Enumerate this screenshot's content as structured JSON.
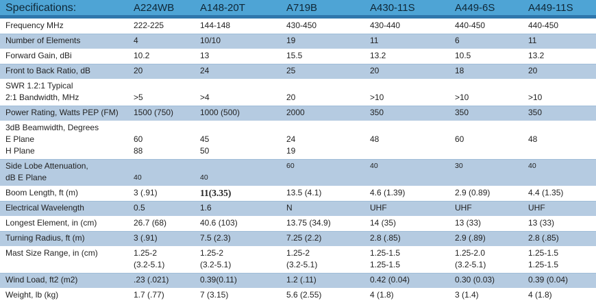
{
  "colors": {
    "header_bg": "#4EA4D5",
    "header_rule": "#2F77AC",
    "row_stripe": "#B5CBE1",
    "text": "#222222",
    "header_text": "#0E2635"
  },
  "table": {
    "columns": [
      "Specifications:",
      "A224WB",
      "A148-20T",
      "A719B",
      "A430-11S",
      "A449-6S",
      "A449-11S"
    ],
    "rows": [
      {
        "label": [
          "Frequency MHz"
        ],
        "stripe": false,
        "cells": [
          [
            "222-225"
          ],
          [
            "144-148"
          ],
          [
            "430-450"
          ],
          [
            "430-440"
          ],
          [
            "440-450"
          ],
          [
            "440-450"
          ]
        ]
      },
      {
        "label": [
          "Number of Elements"
        ],
        "stripe": true,
        "cells": [
          [
            "4"
          ],
          [
            "10/10"
          ],
          [
            "19"
          ],
          [
            "11"
          ],
          [
            "6"
          ],
          [
            "11"
          ]
        ]
      },
      {
        "label": [
          "Forward Gain, dBi"
        ],
        "stripe": false,
        "cells": [
          [
            "10.2"
          ],
          [
            "13"
          ],
          [
            "15.5"
          ],
          [
            "13.2"
          ],
          [
            "10.5"
          ],
          [
            "13.2"
          ]
        ]
      },
      {
        "label": [
          "Front to Back Ratio, dB"
        ],
        "stripe": true,
        "cells": [
          [
            "20"
          ],
          [
            "24"
          ],
          [
            "25"
          ],
          [
            "20"
          ],
          [
            "18"
          ],
          [
            "20"
          ]
        ]
      },
      {
        "label": [
          "SWR 1.2:1 Typical",
          "2:1 Bandwidth, MHz"
        ],
        "stripe": false,
        "cells": [
          [
            "",
            ">5"
          ],
          [
            "",
            ">4"
          ],
          [
            "",
            "20"
          ],
          [
            "",
            ">10"
          ],
          [
            "",
            ">10"
          ],
          [
            "",
            ">10"
          ]
        ]
      },
      {
        "label": [
          "Power Rating, Watts PEP (FM)"
        ],
        "stripe": true,
        "cells": [
          [
            "1500 (750)"
          ],
          [
            "1000 (500)"
          ],
          [
            "2000"
          ],
          [
            "350"
          ],
          [
            "350"
          ],
          [
            "350"
          ]
        ]
      },
      {
        "label": [
          "3dB Beamwidth, Degrees",
          "E Plane",
          "H Plane"
        ],
        "stripe": false,
        "cells": [
          [
            "",
            "60",
            "88"
          ],
          [
            "",
            "45",
            "50"
          ],
          [
            "",
            "24",
            "19"
          ],
          [
            "",
            "48",
            ""
          ],
          [
            "",
            "60",
            ""
          ],
          [
            "",
            "48",
            ""
          ]
        ]
      },
      {
        "label": [
          "Side Lobe Attenuation,",
          "dB E Plane"
        ],
        "stripe": true,
        "small_values": true,
        "cells": [
          [
            "",
            "40"
          ],
          [
            "",
            "40"
          ],
          [
            "60",
            ""
          ],
          [
            "40",
            ""
          ],
          [
            "30",
            ""
          ],
          [
            "40",
            ""
          ]
        ]
      },
      {
        "label": [
          "Boom Length, ft (m)"
        ],
        "stripe": false,
        "bold_cells": [
          1
        ],
        "cells": [
          [
            "3 (.91)"
          ],
          [
            "11(3.35)"
          ],
          [
            "13.5 (4.1)"
          ],
          [
            "4.6 (1.39)"
          ],
          [
            "2.9 (0.89)"
          ],
          [
            "4.4 (1.35)"
          ]
        ]
      },
      {
        "label": [
          "Electrical Wavelength"
        ],
        "stripe": true,
        "cells": [
          [
            "0.5"
          ],
          [
            "1.6"
          ],
          [
            "N"
          ],
          [
            "UHF"
          ],
          [
            "UHF"
          ],
          [
            "UHF"
          ]
        ]
      },
      {
        "label": [
          "Longest Element, in (cm)"
        ],
        "stripe": false,
        "cells": [
          [
            "26.7 (68)"
          ],
          [
            "40.6 (103)"
          ],
          [
            "13.75 (34.9)"
          ],
          [
            "14 (35)"
          ],
          [
            "13 (33)"
          ],
          [
            "13 (33)"
          ]
        ]
      },
      {
        "label": [
          "Turning Radius, ft (m)"
        ],
        "stripe": true,
        "cells": [
          [
            "3 (.91)"
          ],
          [
            "7.5 (2.3)"
          ],
          [
            "7.25 (2.2)"
          ],
          [
            "2.8 (.85)"
          ],
          [
            "2.9 (.89)"
          ],
          [
            "2.8 (.85)"
          ]
        ]
      },
      {
        "label": [
          "Mast Size Range, in (cm)"
        ],
        "stripe": false,
        "cells": [
          [
            "1.25-2",
            "(3.2-5.1)"
          ],
          [
            "1.25-2",
            "(3.2-5.1)"
          ],
          [
            "1.25-2",
            "(3.2-5.1)"
          ],
          [
            "1.25-1.5",
            "1.25-1.5"
          ],
          [
            "1.25-2.0",
            "(3.2-5.1)"
          ],
          [
            "1.25-1.5",
            "1.25-1.5"
          ]
        ]
      },
      {
        "label": [
          "Wind Load, ft2 (m2)"
        ],
        "stripe": true,
        "cells": [
          [
            ".23 (.021)"
          ],
          [
            "0.39(0.11)"
          ],
          [
            "1.2 (.11)"
          ],
          [
            "0.42 (0.04)"
          ],
          [
            "0.30 (0.03)"
          ],
          [
            "0.39 (0.04)"
          ]
        ]
      },
      {
        "label": [
          "Weight, lb (kg)"
        ],
        "stripe": false,
        "cells": [
          [
            "1.7 (.77)"
          ],
          [
            "7 (3.15)"
          ],
          [
            "5.6 (2.55)"
          ],
          [
            "4 (1.8)"
          ],
          [
            "3 (1.4)"
          ],
          [
            "4 (1.8)"
          ]
        ]
      }
    ]
  }
}
